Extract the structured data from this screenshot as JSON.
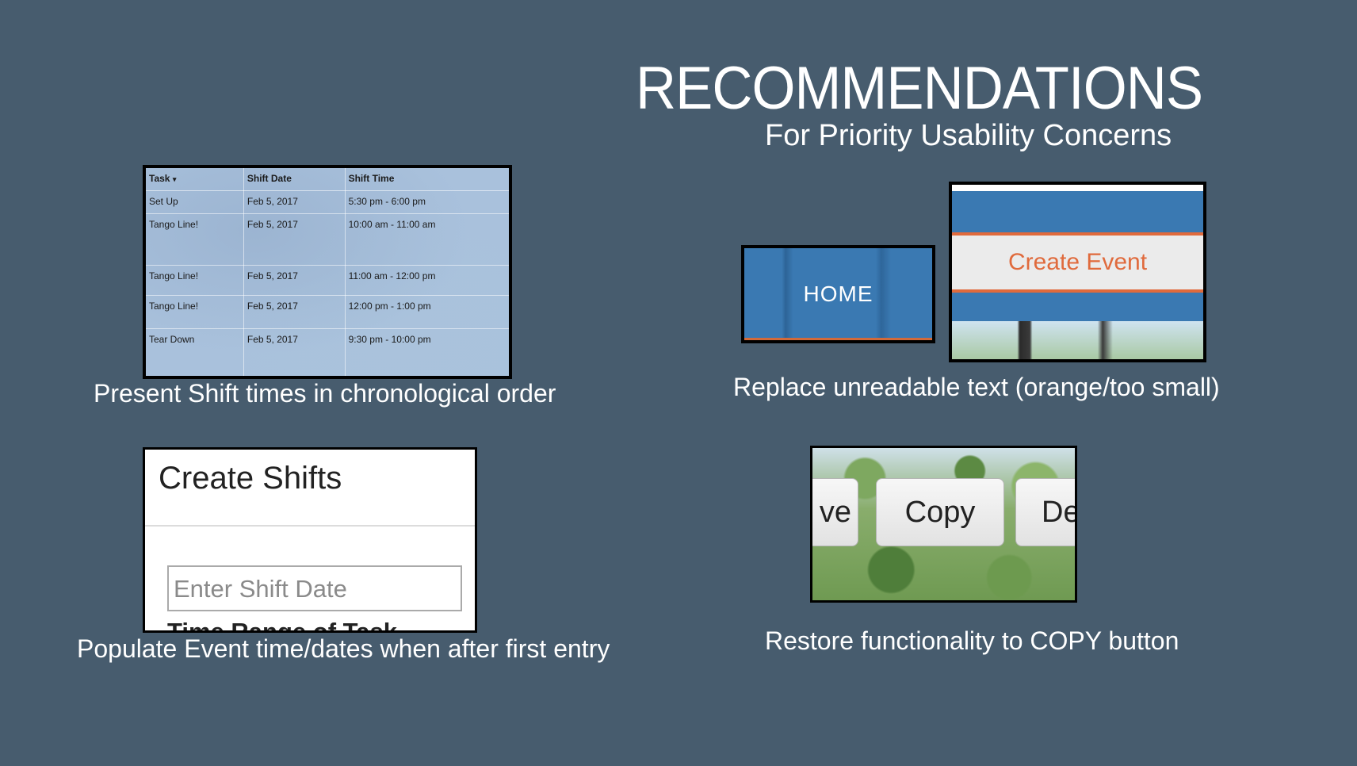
{
  "header": {
    "title": "RECOMMENDATIONS",
    "subtitle": "For Priority Usability Concerns"
  },
  "shift_table": {
    "columns": [
      "Task",
      "Shift Date",
      "Shift Time"
    ],
    "rows": [
      {
        "task": "Set Up",
        "date": "Feb 5, 2017",
        "time": "5:30 pm - 6:00 pm"
      },
      {
        "task": "Tango Line!",
        "date": "Feb 5, 2017",
        "time": "10:00 am - 11:00 am"
      },
      {
        "task": "Tango Line!",
        "date": "Feb 5, 2017",
        "time": "11:00 am - 12:00 pm"
      },
      {
        "task": "Tango Line!",
        "date": "Feb 5, 2017",
        "time": "12:00 pm - 1:00 pm"
      },
      {
        "task": "Tear Down",
        "date": "Feb 5, 2017",
        "time": "9:30 pm - 10:00 pm"
      }
    ],
    "caption": "Present Shift times in chronological order"
  },
  "readability": {
    "home_label": "HOME",
    "create_event_label": "Create Event",
    "caption": "Replace unreadable text (orange/too small)"
  },
  "create_shifts": {
    "heading": "Create Shifts",
    "date_placeholder": "Enter Shift Date",
    "next_label": "Time Range of Task",
    "caption": "Populate Event time/dates when after first entry"
  },
  "copy_panel": {
    "left_partial": "ve",
    "copy_label": "Copy",
    "right_partial": "De",
    "caption": "Restore functionality to COPY button"
  },
  "colors": {
    "background": "#475c6e",
    "accent_orange": "#e06a3c",
    "site_blue": "#3a79b2"
  }
}
